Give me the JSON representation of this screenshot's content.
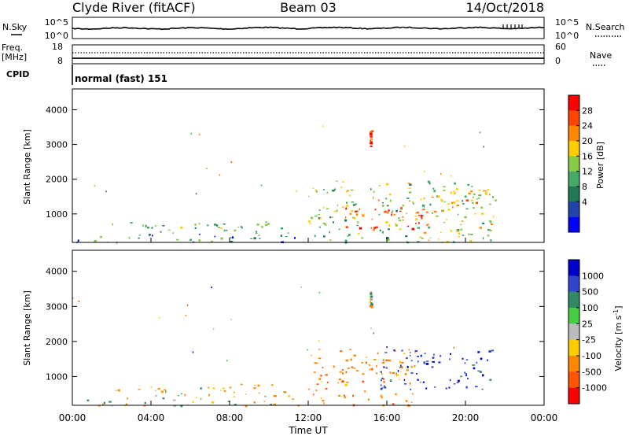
{
  "header": {
    "station": "Clyde River (fitACF)",
    "beam": "Beam 03",
    "date": "14/Oct/2018"
  },
  "summary": {
    "nsky_label": "N.Sky",
    "nsky_ticks": [
      "10^5",
      "10^0"
    ],
    "nsearch_label": "N.Search",
    "nsearch_ticks": [
      "10^5",
      "10^0"
    ],
    "freq_label_lines": [
      "Freq.",
      "[MHz]"
    ],
    "freq_ticks": [
      "18",
      "8"
    ],
    "nave_label": "Nave",
    "nave_ticks": [
      "60",
      "0"
    ],
    "cpid_label": "CPID",
    "cpid_text": "normal (fast) 151"
  },
  "chart_data": [
    {
      "type": "heatmap",
      "name": "power",
      "ylabel": "Slant Range [km]",
      "xlabel": "",
      "ylim": [
        180,
        4600
      ],
      "xlim": [
        0,
        24
      ],
      "y_ticks": [
        "4000",
        "3000",
        "2000",
        "1000"
      ],
      "colorbar_label": "Power [dB]",
      "colorbar_ticks": [
        "28",
        "24",
        "20",
        "16",
        "12",
        "8",
        "4"
      ],
      "colorbar_colors": [
        "#ff0000",
        "#ff4400",
        "#ff8800",
        "#ffcc00",
        "#88cc44",
        "#44aa66",
        "#227755",
        "#2244aa",
        "#0000ff"
      ],
      "echo_regions": [
        {
          "t0": 0.2,
          "t1": 11.8,
          "r0": 180,
          "r1": 380,
          "value": 8
        },
        {
          "t0": 2.0,
          "t1": 11.0,
          "r0": 380,
          "r1": 800,
          "value": 10
        },
        {
          "t0": 12.0,
          "t1": 21.3,
          "r0": 200,
          "r1": 2000,
          "value": 14
        },
        {
          "t0": 13.5,
          "t1": 18.5,
          "r0": 500,
          "r1": 1200,
          "value": 26
        },
        {
          "t0": 19.0,
          "t1": 21.5,
          "r0": 700,
          "r1": 1700,
          "value": 18
        },
        {
          "t0": 15.1,
          "t1": 15.2,
          "r0": 2950,
          "r1": 3450,
          "value": 26
        }
      ]
    },
    {
      "type": "heatmap",
      "name": "velocity",
      "ylabel": "Slant Range [km]",
      "xlabel": "Time UT",
      "ylim": [
        180,
        4600
      ],
      "xlim": [
        0,
        24
      ],
      "y_ticks": [
        "4000",
        "3000",
        "2000",
        "1000"
      ],
      "x_ticks": [
        "00:00",
        "04:00",
        "08:00",
        "12:00",
        "16:00",
        "20:00",
        "00:00"
      ],
      "colorbar_label": "Velocity [m s",
      "colorbar_exponent": "-1",
      "colorbar_ticks": [
        "1000",
        "500",
        "100",
        "25",
        "-25",
        "-100",
        "-500",
        "-1000"
      ],
      "colorbar_colors": [
        "#0000cc",
        "#3344cc",
        "#338866",
        "#44cc44",
        "#bbbbbb",
        "#ffcc00",
        "#ff8800",
        "#ff5500",
        "#ff0000"
      ],
      "echo_regions": [
        {
          "t0": 0.2,
          "t1": 11.8,
          "r0": 180,
          "r1": 380,
          "value": -60
        },
        {
          "t0": 2.0,
          "t1": 11.0,
          "r0": 380,
          "r1": 800,
          "value": -120
        },
        {
          "t0": 12.0,
          "t1": 17.5,
          "r0": 200,
          "r1": 1800,
          "value": -400
        },
        {
          "t0": 15.5,
          "t1": 21.5,
          "r0": 600,
          "r1": 1800,
          "value": 800
        },
        {
          "t0": 15.1,
          "t1": 15.2,
          "r0": 3000,
          "r1": 3450,
          "value": 100
        }
      ]
    }
  ]
}
